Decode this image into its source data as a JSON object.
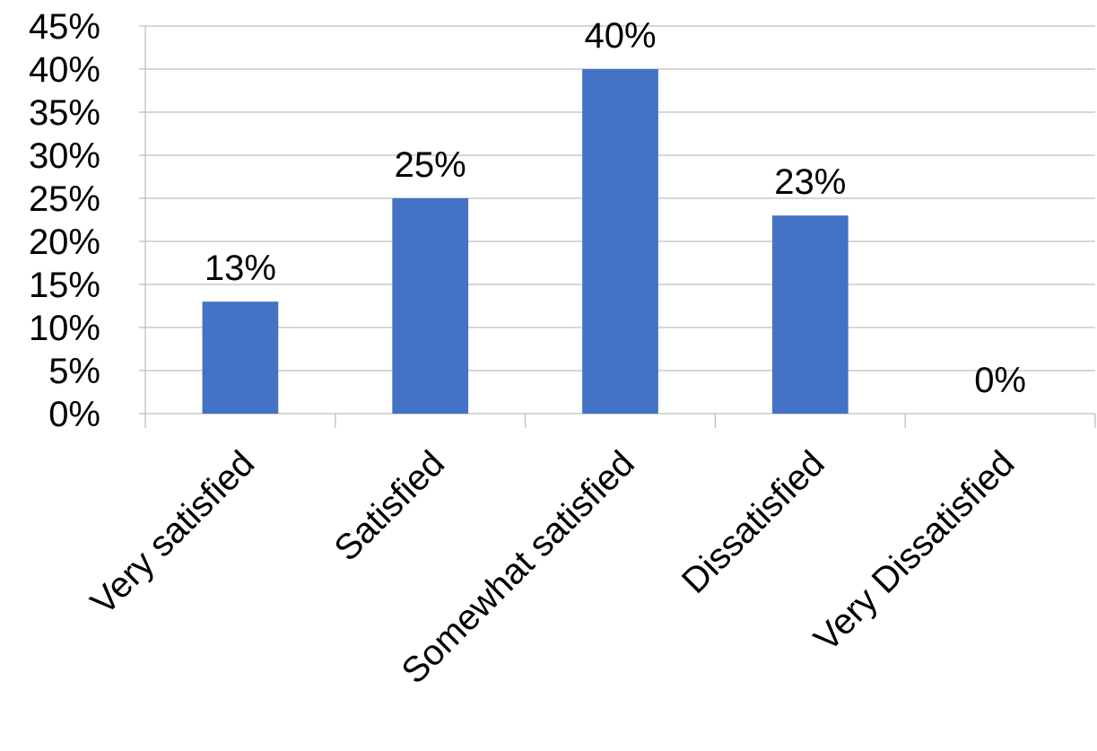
{
  "chart_data": {
    "type": "bar",
    "categories": [
      "Very satisfied",
      "Satisfied",
      "Somewhat satisfied",
      "Dissatisfied",
      "Very Dissatisfied"
    ],
    "values": [
      13,
      25,
      40,
      23,
      0
    ],
    "data_labels": [
      "13%",
      "25%",
      "40%",
      "23%",
      "0%"
    ],
    "ylim": [
      0,
      45
    ],
    "ytick_values": [
      0,
      5,
      10,
      15,
      20,
      25,
      30,
      35,
      40,
      45
    ],
    "ytick_labels": [
      "0%",
      "5%",
      "10%",
      "15%",
      "20%",
      "25%",
      "30%",
      "35%",
      "40%",
      "45%"
    ],
    "grid": true,
    "legend": "none",
    "bar_color": "#4472C4",
    "grid_color": "#BFBFBF"
  }
}
